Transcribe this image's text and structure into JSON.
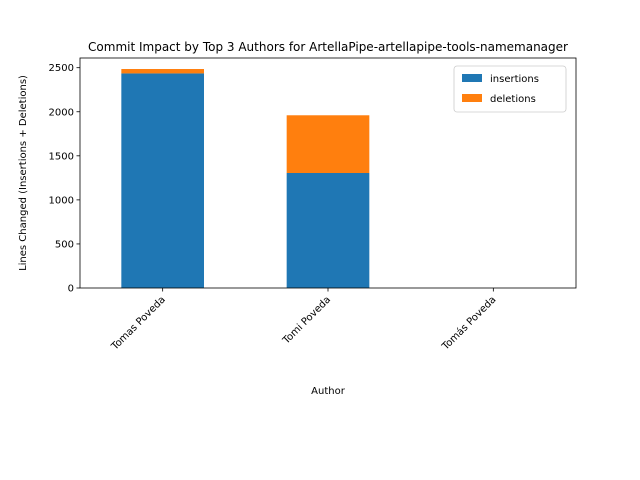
{
  "chart_data": {
    "type": "bar",
    "stacked": true,
    "title": "Commit Impact by Top 3 Authors for ArtellaPipe-artellapipe-tools-namemanager",
    "xlabel": "Author",
    "ylabel": "Lines Changed (Insertions + Deletions)",
    "categories": [
      "Tomas Poveda",
      "Tomi Poveda",
      "Tomás Poveda"
    ],
    "series": [
      {
        "name": "insertions",
        "color": "#1f77b4",
        "values": [
          2435,
          1305,
          0
        ]
      },
      {
        "name": "deletions",
        "color": "#ff7f0e",
        "values": [
          50,
          655,
          0
        ]
      }
    ],
    "ylim": [
      0,
      2610
    ],
    "yticks": [
      0,
      500,
      1000,
      1500,
      2000,
      2500
    ],
    "grid": false,
    "legend_position": "top-right"
  }
}
